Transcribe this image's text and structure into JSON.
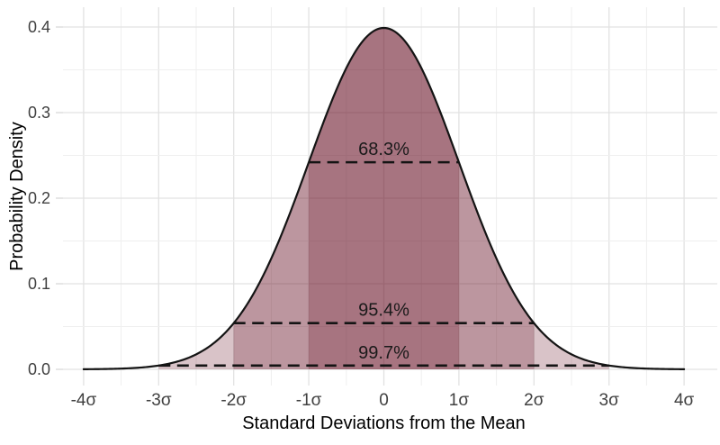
{
  "figure": {
    "background_color": "#ffffff"
  },
  "chart_data": {
    "type": "area",
    "title": "",
    "xlabel": "Standard Deviations from the Mean",
    "ylabel": "Probability Density",
    "distribution": {
      "name": "standard_normal",
      "mean": 0,
      "sd": 1
    },
    "curve_x_range": [
      -4,
      4
    ],
    "xlim": [
      -4.4,
      4.4
    ],
    "ylim": [
      0,
      0.44
    ],
    "x_ticks": [
      {
        "value": -4,
        "label": "-4σ"
      },
      {
        "value": -3,
        "label": "-3σ"
      },
      {
        "value": -2,
        "label": "-2σ"
      },
      {
        "value": -1,
        "label": "-1σ"
      },
      {
        "value": 0,
        "label": "0"
      },
      {
        "value": 1,
        "label": "1σ"
      },
      {
        "value": 2,
        "label": "2σ"
      },
      {
        "value": 3,
        "label": "3σ"
      },
      {
        "value": 4,
        "label": "4σ"
      }
    ],
    "y_ticks": [
      {
        "value": 0.0,
        "label": "0.0"
      },
      {
        "value": 0.1,
        "label": "0.1"
      },
      {
        "value": 0.2,
        "label": "0.2"
      },
      {
        "value": 0.3,
        "label": "0.3"
      },
      {
        "value": 0.4,
        "label": "0.4"
      }
    ],
    "regions": [
      {
        "sigma": 1,
        "label": "68.3%",
        "boundary_density": 0.24197
      },
      {
        "sigma": 2,
        "label": "95.4%",
        "boundary_density": 0.05399
      },
      {
        "sigma": 3,
        "label": "99.7%",
        "boundary_density": 0.00443
      }
    ],
    "grid": {
      "show": true,
      "x_minor_step": 0.5,
      "y_minor_step": 0.05,
      "major_color": "#e2e2e2",
      "minor_color": "#efefef",
      "tick_mark_color": "#d9d9d9"
    },
    "legend": {
      "show": false
    },
    "style": {
      "fill_color": "#670f23",
      "fill_alpha": 0.25,
      "curve_color": "#141414",
      "dash_color": "#141414",
      "region_label_color": "#1a1a1a",
      "tick_label_color": "#404040",
      "axis_title_color": "#000000"
    }
  }
}
